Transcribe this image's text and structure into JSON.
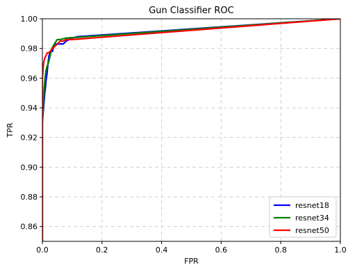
{
  "chart_data": {
    "type": "line",
    "title": "Gun Classifier ROC",
    "xlabel": "FPR",
    "ylabel": "TPR",
    "xlim": [
      0.0,
      1.0
    ],
    "ylim": [
      0.85,
      1.0
    ],
    "xticks": [
      "0.0",
      "0.2",
      "0.4",
      "0.6",
      "0.8",
      "1.0"
    ],
    "yticks": [
      "0.86",
      "0.88",
      "0.90",
      "0.92",
      "0.94",
      "0.96",
      "0.98",
      "1.00"
    ],
    "grid": true,
    "legend_position": "bottom-right",
    "series": [
      {
        "name": "resnet18",
        "color": "#0000ff",
        "x": [
          0.0,
          0.0,
          0.002,
          0.004,
          0.006,
          0.008,
          0.01,
          0.012,
          0.015,
          0.018,
          0.022,
          0.028,
          0.034,
          0.04,
          0.048,
          0.06,
          0.07,
          0.08,
          0.1,
          0.12,
          1.0
        ],
        "y": [
          0.85,
          0.93,
          0.935,
          0.94,
          0.945,
          0.95,
          0.953,
          0.958,
          0.962,
          0.968,
          0.975,
          0.978,
          0.978,
          0.983,
          0.983,
          0.983,
          0.983,
          0.985,
          0.987,
          0.988,
          1.0
        ]
      },
      {
        "name": "resnet34",
        "color": "#008000",
        "x": [
          0.0,
          0.0,
          0.003,
          0.006,
          0.009,
          0.012,
          0.016,
          0.02,
          0.026,
          0.032,
          0.04,
          0.05,
          0.06,
          0.08,
          1.0
        ],
        "y": [
          0.85,
          0.93,
          0.94,
          0.953,
          0.96,
          0.965,
          0.968,
          0.97,
          0.975,
          0.98,
          0.983,
          0.986,
          0.986,
          0.987,
          1.0
        ]
      },
      {
        "name": "resnet50",
        "color": "#ff0000",
        "x": [
          0.0,
          0.0,
          0.002,
          0.004,
          0.006,
          0.009,
          0.012,
          0.016,
          0.02,
          0.026,
          0.034,
          0.04,
          0.05,
          0.06,
          0.07,
          0.08,
          0.1,
          1.0
        ],
        "y": [
          0.85,
          0.96,
          0.965,
          0.97,
          0.972,
          0.974,
          0.975,
          0.977,
          0.977,
          0.978,
          0.98,
          0.981,
          0.983,
          0.985,
          0.985,
          0.986,
          0.986,
          1.0
        ]
      }
    ]
  }
}
